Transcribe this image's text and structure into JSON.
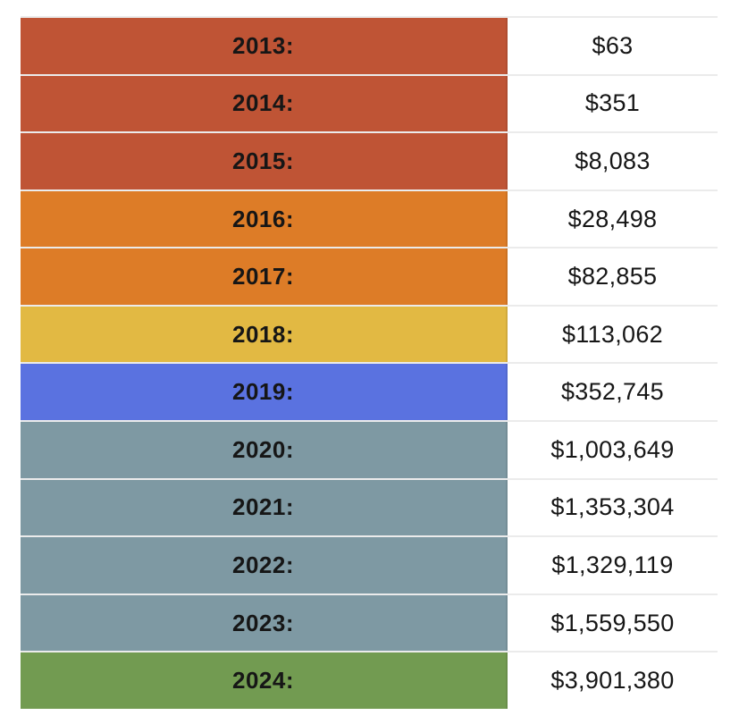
{
  "table": {
    "name": "yearly-revenue-table",
    "rows": [
      {
        "year": "2013:",
        "value": "$63",
        "color": "#BF5435"
      },
      {
        "year": "2014:",
        "value": "$351",
        "color": "#BF5435"
      },
      {
        "year": "2015:",
        "value": "$8,083",
        "color": "#BF5435"
      },
      {
        "year": "2016:",
        "value": "$28,498",
        "color": "#DD7C27"
      },
      {
        "year": "2017:",
        "value": "$82,855",
        "color": "#DD7C27"
      },
      {
        "year": "2018:",
        "value": "$113,062",
        "color": "#E2B943"
      },
      {
        "year": "2019:",
        "value": "$352,745",
        "color": "#5A72E0"
      },
      {
        "year": "2020:",
        "value": "$1,003,649",
        "color": "#7E99A3"
      },
      {
        "year": "2021:",
        "value": "$1,353,304",
        "color": "#7E99A3"
      },
      {
        "year": "2022:",
        "value": "$1,329,119",
        "color": "#7E99A3"
      },
      {
        "year": "2023:",
        "value": "$1,559,550",
        "color": "#7E99A3"
      },
      {
        "year": "2024:",
        "value": "$3,901,380",
        "color": "#729B51"
      }
    ]
  },
  "chart_data": {
    "type": "table",
    "title": "",
    "categories": [
      "2013",
      "2014",
      "2015",
      "2016",
      "2017",
      "2018",
      "2019",
      "2020",
      "2021",
      "2022",
      "2023",
      "2024"
    ],
    "values": [
      63,
      351,
      8083,
      28498,
      82855,
      113062,
      352745,
      1003649,
      1353304,
      1329119,
      1559550,
      3901380
    ],
    "value_format": "USD",
    "row_colors": [
      "#BF5435",
      "#BF5435",
      "#BF5435",
      "#DD7C27",
      "#DD7C27",
      "#E2B943",
      "#5A72E0",
      "#7E99A3",
      "#7E99A3",
      "#7E99A3",
      "#7E99A3",
      "#729B51"
    ],
    "legend_position": "none",
    "grid": true
  }
}
